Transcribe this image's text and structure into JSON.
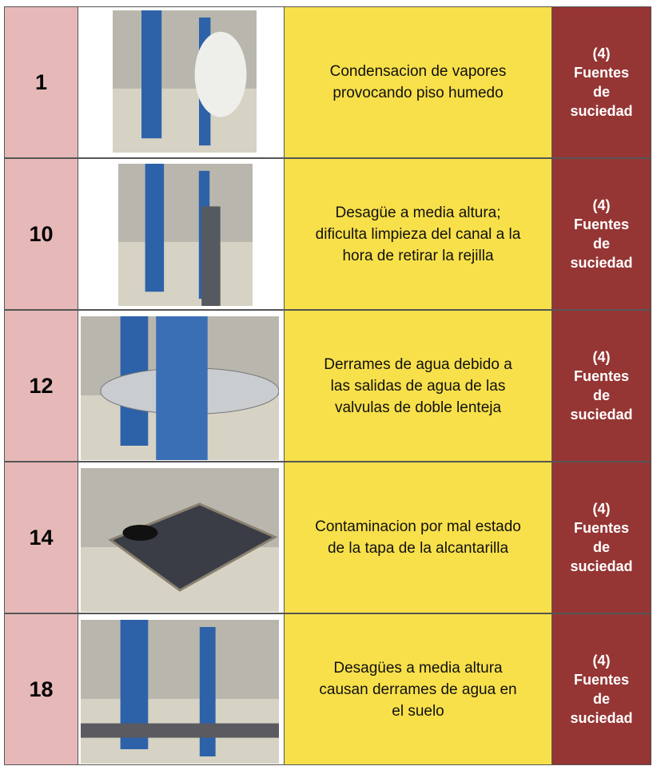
{
  "table": {
    "rows": [
      {
        "number": "1",
        "description": [
          "Condensacion de vapores",
          "provocando piso humedo"
        ],
        "category": [
          "(4)",
          "Fuentes",
          "de",
          "suciedad"
        ]
      },
      {
        "number": "10",
        "description": [
          "Desagüe  a media altura;",
          "dificulta limpieza del canal a la",
          "hora de retirar la rejilla"
        ],
        "category": [
          "(4)",
          "Fuentes",
          "de",
          "suciedad"
        ]
      },
      {
        "number": "12",
        "description": [
          "Derrames de agua debido a",
          "las salidas de agua de las",
          "valvulas de doble lenteja"
        ],
        "category": [
          "(4)",
          "Fuentes",
          "de",
          "suciedad"
        ]
      },
      {
        "number": "14",
        "description": [
          "Contaminacion por mal estado",
          "de la tapa de la alcantarilla"
        ],
        "category": [
          "(4)",
          "Fuentes",
          "de",
          "suciedad"
        ]
      },
      {
        "number": "18",
        "description": [
          "Desagües  a media altura",
          "causan derrames de agua en",
          "el suelo"
        ],
        "category": [
          "(4)",
          "Fuentes",
          "de",
          "suciedad"
        ]
      }
    ]
  }
}
